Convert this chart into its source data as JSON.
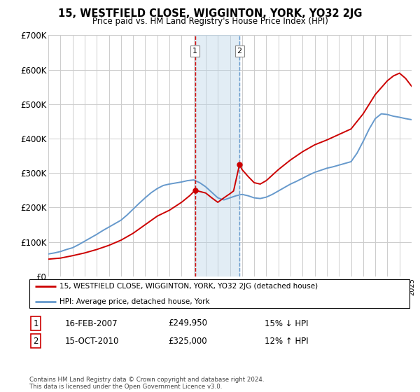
{
  "title": "15, WESTFIELD CLOSE, WIGGINTON, YORK, YO32 2JG",
  "subtitle": "Price paid vs. HM Land Registry's House Price Index (HPI)",
  "ylim": [
    0,
    700000
  ],
  "yticks": [
    0,
    100000,
    200000,
    300000,
    400000,
    500000,
    600000,
    700000
  ],
  "ytick_labels": [
    "£0",
    "£100K",
    "£200K",
    "£300K",
    "£400K",
    "£500K",
    "£600K",
    "£700K"
  ],
  "line1_color": "#cc0000",
  "line2_color": "#6699cc",
  "marker1_year": 2007.12,
  "marker2_year": 2010.79,
  "shade_color": "#b8d4e8",
  "shade_alpha": 0.4,
  "legend_line1": "15, WESTFIELD CLOSE, WIGGINTON, YORK, YO32 2JG (detached house)",
  "legend_line2": "HPI: Average price, detached house, York",
  "annotation1_num": "1",
  "annotation1_date": "16-FEB-2007",
  "annotation1_price": "£249,950",
  "annotation1_hpi": "15% ↓ HPI",
  "annotation2_num": "2",
  "annotation2_date": "15-OCT-2010",
  "annotation2_price": "£325,000",
  "annotation2_hpi": "12% ↑ HPI",
  "footnote": "Contains HM Land Registry data © Crown copyright and database right 2024.\nThis data is licensed under the Open Government Licence v3.0.",
  "background_color": "#ffffff",
  "grid_color": "#cccccc",
  "hpi_years": [
    1995.0,
    1995.5,
    1996.0,
    1996.5,
    1997.0,
    1997.5,
    1998.0,
    1998.5,
    1999.0,
    1999.5,
    2000.0,
    2000.5,
    2001.0,
    2001.5,
    2002.0,
    2002.5,
    2003.0,
    2003.5,
    2004.0,
    2004.5,
    2005.0,
    2005.5,
    2006.0,
    2006.5,
    2007.0,
    2007.5,
    2008.0,
    2008.5,
    2009.0,
    2009.5,
    2010.0,
    2010.5,
    2011.0,
    2011.5,
    2012.0,
    2012.5,
    2013.0,
    2013.5,
    2014.0,
    2014.5,
    2015.0,
    2015.5,
    2016.0,
    2016.5,
    2017.0,
    2017.5,
    2018.0,
    2018.5,
    2019.0,
    2019.5,
    2020.0,
    2020.5,
    2021.0,
    2021.5,
    2022.0,
    2022.5,
    2023.0,
    2023.5,
    2024.0,
    2024.5,
    2025.0
  ],
  "hpi_vals": [
    65000,
    68000,
    72000,
    78000,
    83000,
    92000,
    102000,
    112000,
    122000,
    133000,
    143000,
    153000,
    163000,
    178000,
    195000,
    212000,
    228000,
    243000,
    255000,
    264000,
    268000,
    271000,
    274000,
    278000,
    280000,
    272000,
    260000,
    244000,
    228000,
    222000,
    228000,
    234000,
    238000,
    234000,
    228000,
    226000,
    230000,
    238000,
    248000,
    258000,
    268000,
    276000,
    285000,
    294000,
    302000,
    308000,
    314000,
    318000,
    323000,
    328000,
    333000,
    358000,
    392000,
    428000,
    458000,
    472000,
    470000,
    465000,
    462000,
    458000,
    455000
  ],
  "price_years": [
    1995.0,
    1996.0,
    1997.0,
    1998.0,
    1999.0,
    2000.0,
    2001.0,
    2002.0,
    2003.0,
    2004.0,
    2005.0,
    2006.0,
    2006.7,
    2007.12,
    2008.0,
    2008.5,
    2009.0,
    2009.5,
    2010.0,
    2010.3,
    2010.79,
    2011.0,
    2011.5,
    2012.0,
    2012.5,
    2013.0,
    2014.0,
    2015.0,
    2016.0,
    2017.0,
    2018.0,
    2019.0,
    2020.0,
    2021.0,
    2022.0,
    2022.5,
    2023.0,
    2023.5,
    2024.0,
    2024.5,
    2025.0
  ],
  "price_vals": [
    50000,
    53000,
    60000,
    68000,
    78000,
    90000,
    105000,
    125000,
    150000,
    175000,
    192000,
    215000,
    235000,
    249950,
    242000,
    228000,
    215000,
    228000,
    240000,
    248000,
    325000,
    310000,
    290000,
    272000,
    268000,
    278000,
    310000,
    338000,
    362000,
    382000,
    396000,
    412000,
    428000,
    472000,
    528000,
    548000,
    568000,
    582000,
    590000,
    575000,
    552000
  ]
}
